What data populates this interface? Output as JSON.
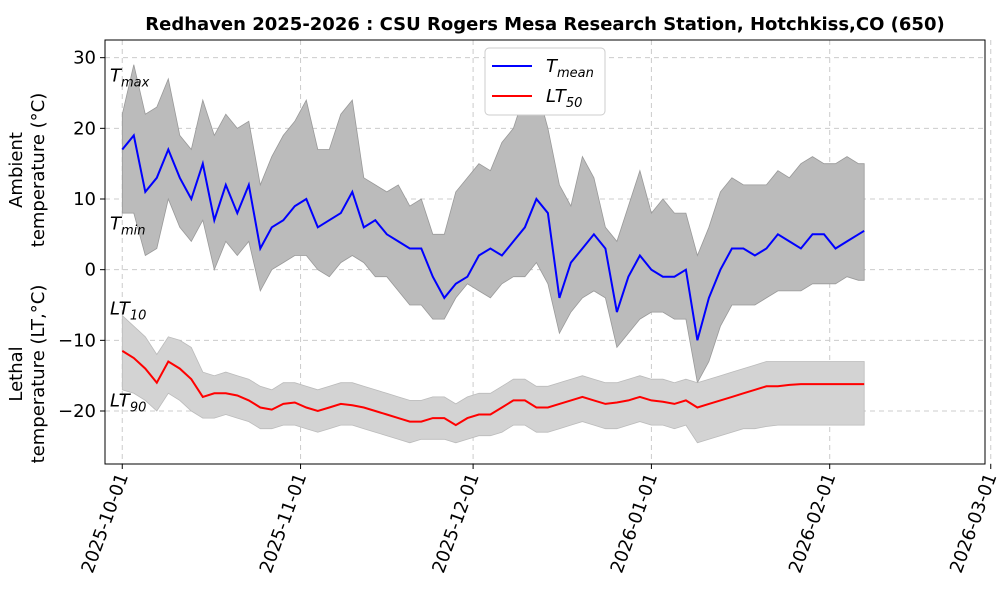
{
  "chart_data": {
    "type": "line",
    "title": "Redhaven 2025-2026 : CSU Rogers Mesa Research Station, Hotchkiss,CO (650)",
    "ylabel_upper": [
      "Ambient",
      "temperature (°C)"
    ],
    "ylabel_lower": [
      "Lethal",
      "temperature (LT,°C)"
    ],
    "ylim": [
      -27.5,
      32.5
    ],
    "yticks": [
      -20,
      -10,
      0,
      10,
      20,
      30
    ],
    "ytick_labels": [
      "−20",
      "−10",
      "0",
      "10",
      "20",
      "30"
    ],
    "xlim_days": [
      -3,
      150
    ],
    "xticks_days": [
      0,
      31,
      61,
      92,
      123,
      151
    ],
    "xtick_labels": [
      "2025-10-01",
      "2025-11-01",
      "2025-12-01",
      "2026-01-01",
      "2026-02-01",
      "2026-03-01"
    ],
    "grid": true,
    "legend_position": "top-center",
    "legend": [
      {
        "main": "T",
        "sub": "mean",
        "color": "#0000ff"
      },
      {
        "main": "LT",
        "sub": "50",
        "color": "#ff0000"
      }
    ],
    "annotations": [
      {
        "main": "T",
        "sub": "max",
        "y": 27.5
      },
      {
        "main": "T",
        "sub": "min",
        "y": 6.5
      },
      {
        "main": "LT",
        "sub": "10",
        "y": -5.5
      },
      {
        "main": "LT",
        "sub": "90",
        "y": -18.5
      }
    ],
    "colors": {
      "tmean": "#0000ff",
      "lt50": "#ff0000",
      "temp_band": "#bbbbbb",
      "lt_band": "#d3d3d3"
    },
    "series": [
      {
        "name": "T_mean",
        "days": [
          0,
          2,
          4,
          6,
          8,
          10,
          12,
          14,
          16,
          18,
          20,
          22,
          24,
          26,
          28,
          30,
          32,
          34,
          36,
          38,
          40,
          42,
          44,
          46,
          48,
          50,
          52,
          54,
          56,
          58,
          60,
          62,
          64,
          66,
          68,
          70,
          72,
          74,
          76,
          78,
          80,
          82,
          84,
          86,
          88,
          90,
          92,
          94,
          96,
          98,
          100,
          102,
          104,
          106,
          108,
          110,
          112,
          114,
          116,
          118,
          120,
          122,
          124,
          126,
          128,
          129
        ],
        "values": [
          17,
          19,
          11,
          13,
          17,
          13,
          10,
          15,
          7,
          12,
          8,
          12,
          3,
          6,
          7,
          9,
          10,
          6,
          7,
          8,
          11,
          6,
          7,
          5,
          4,
          3,
          3,
          -1,
          -4,
          -2,
          -1,
          2,
          3,
          2,
          4,
          6,
          10,
          8,
          -4,
          1,
          3,
          5,
          3,
          -6,
          -1,
          2,
          0,
          -1,
          -1,
          0,
          -10,
          -4,
          0,
          3,
          3,
          2,
          3,
          5,
          4,
          3,
          5,
          5,
          3,
          4,
          5,
          5.5
        ]
      },
      {
        "name": "T_max",
        "days": [
          0,
          2,
          4,
          6,
          8,
          10,
          12,
          14,
          16,
          18,
          20,
          22,
          24,
          26,
          28,
          30,
          32,
          34,
          36,
          38,
          40,
          42,
          44,
          46,
          48,
          50,
          52,
          54,
          56,
          58,
          60,
          62,
          64,
          66,
          68,
          70,
          72,
          74,
          76,
          78,
          80,
          82,
          84,
          86,
          88,
          90,
          92,
          94,
          96,
          98,
          100,
          102,
          104,
          106,
          108,
          110,
          112,
          114,
          116,
          118,
          120,
          122,
          124,
          126,
          128,
          129
        ],
        "values": [
          22,
          29,
          22,
          23,
          27,
          19,
          17,
          24,
          19,
          22,
          20,
          21,
          12,
          16,
          19,
          21,
          24,
          17,
          17,
          22,
          24,
          13,
          12,
          11,
          12,
          9,
          10,
          5,
          5,
          11,
          13,
          15,
          14,
          18,
          20,
          25,
          26,
          20,
          12,
          9,
          16,
          13,
          6,
          4,
          9,
          14,
          8,
          10,
          8,
          8,
          2,
          6,
          11,
          13,
          12,
          12,
          12,
          14,
          13,
          15,
          16,
          15,
          15,
          16,
          15,
          15
        ]
      },
      {
        "name": "T_min",
        "days": [
          0,
          2,
          4,
          6,
          8,
          10,
          12,
          14,
          16,
          18,
          20,
          22,
          24,
          26,
          28,
          30,
          32,
          34,
          36,
          38,
          40,
          42,
          44,
          46,
          48,
          50,
          52,
          54,
          56,
          58,
          60,
          62,
          64,
          66,
          68,
          70,
          72,
          74,
          76,
          78,
          80,
          82,
          84,
          86,
          88,
          90,
          92,
          94,
          96,
          98,
          100,
          102,
          104,
          106,
          108,
          110,
          112,
          114,
          116,
          118,
          120,
          122,
          124,
          126,
          128,
          129
        ],
        "values": [
          8,
          8,
          2,
          3,
          10,
          6,
          4,
          7,
          0,
          4,
          2,
          4,
          -3,
          0,
          1,
          2,
          2,
          0,
          -1,
          1,
          2,
          1,
          -1,
          -1,
          -3,
          -5,
          -5,
          -7,
          -7,
          -4,
          -2,
          -3,
          -4,
          -2,
          -1,
          -1,
          1,
          -2,
          -9,
          -6,
          -4,
          -3,
          -4,
          -11,
          -9,
          -7,
          -6,
          -6,
          -7,
          -7,
          -16,
          -13,
          -8,
          -5,
          -5,
          -5,
          -4,
          -3,
          -3,
          -3,
          -2,
          -2,
          -2,
          -1,
          -1.5,
          -1.5
        ]
      },
      {
        "name": "LT_50",
        "days": [
          0,
          2,
          4,
          6,
          8,
          10,
          12,
          14,
          16,
          18,
          20,
          22,
          24,
          26,
          28,
          30,
          32,
          34,
          36,
          38,
          40,
          42,
          44,
          46,
          48,
          50,
          52,
          54,
          56,
          58,
          60,
          62,
          64,
          66,
          68,
          70,
          72,
          74,
          76,
          78,
          80,
          82,
          84,
          86,
          88,
          90,
          92,
          94,
          96,
          98,
          100,
          102,
          104,
          106,
          108,
          110,
          112,
          114,
          116,
          118,
          120,
          122,
          124,
          126,
          128,
          129
        ],
        "values": [
          -11.5,
          -12.5,
          -14,
          -16,
          -13,
          -14,
          -15.5,
          -18,
          -17.5,
          -17.5,
          -17.8,
          -18.5,
          -19.5,
          -19.8,
          -19,
          -18.8,
          -19.5,
          -20,
          -19.5,
          -19,
          -19.2,
          -19.5,
          -20,
          -20.5,
          -21,
          -21.5,
          -21.5,
          -21,
          -21,
          -22,
          -21,
          -20.5,
          -20.5,
          -19.5,
          -18.5,
          -18.5,
          -19.5,
          -19.5,
          -19,
          -18.5,
          -18,
          -18.5,
          -19,
          -18.8,
          -18.5,
          -18,
          -18.5,
          -18.7,
          -19,
          -18.5,
          -19.5,
          -19,
          -18.5,
          -18,
          -17.5,
          -17,
          -16.5,
          -16.5,
          -16.3,
          -16.2,
          -16.2,
          -16.2,
          -16.2,
          -16.2,
          -16.2,
          -16.2
        ]
      },
      {
        "name": "LT_10",
        "days": [
          0,
          2,
          4,
          6,
          8,
          10,
          12,
          14,
          16,
          18,
          20,
          22,
          24,
          26,
          28,
          30,
          32,
          34,
          36,
          38,
          40,
          42,
          44,
          46,
          48,
          50,
          52,
          54,
          56,
          58,
          60,
          62,
          64,
          66,
          68,
          70,
          72,
          74,
          76,
          78,
          80,
          82,
          84,
          86,
          88,
          90,
          92,
          94,
          96,
          98,
          100,
          102,
          104,
          106,
          108,
          110,
          112,
          114,
          116,
          118,
          120,
          122,
          124,
          126,
          128,
          129
        ],
        "values": [
          -6.5,
          -8,
          -9.5,
          -12,
          -9.5,
          -10,
          -11,
          -14.5,
          -15,
          -14.5,
          -15,
          -15.5,
          -16.5,
          -17,
          -16,
          -16,
          -16.5,
          -17,
          -16.5,
          -16,
          -16,
          -16.5,
          -17,
          -17.5,
          -18,
          -18.5,
          -18.5,
          -18,
          -18,
          -19,
          -18,
          -17.5,
          -17.5,
          -16.5,
          -15.5,
          -15.5,
          -16.5,
          -16.5,
          -16,
          -15.5,
          -15,
          -15.5,
          -16,
          -16,
          -15.5,
          -15,
          -15.5,
          -15.5,
          -16,
          -15.5,
          -16,
          -15.5,
          -15,
          -14.5,
          -14,
          -13.5,
          -13,
          -13,
          -13,
          -13,
          -13,
          -13,
          -13,
          -13,
          -13,
          -13
        ]
      },
      {
        "name": "LT_90",
        "days": [
          0,
          2,
          4,
          6,
          8,
          10,
          12,
          14,
          16,
          18,
          20,
          22,
          24,
          26,
          28,
          30,
          32,
          34,
          36,
          38,
          40,
          42,
          44,
          46,
          48,
          50,
          52,
          54,
          56,
          58,
          60,
          62,
          64,
          66,
          68,
          70,
          72,
          74,
          76,
          78,
          80,
          82,
          84,
          86,
          88,
          90,
          92,
          94,
          96,
          98,
          100,
          102,
          104,
          106,
          108,
          110,
          112,
          114,
          116,
          118,
          120,
          122,
          124,
          126,
          128,
          129
        ],
        "values": [
          -17,
          -17.5,
          -18.5,
          -20,
          -17.5,
          -18.5,
          -20,
          -21,
          -21,
          -20.5,
          -21,
          -21.5,
          -22.5,
          -22.5,
          -22,
          -22,
          -22.5,
          -23,
          -22.5,
          -22,
          -22,
          -22.5,
          -23,
          -23.5,
          -24,
          -24.5,
          -24,
          -24,
          -24,
          -24.5,
          -24,
          -23.5,
          -23.5,
          -23,
          -22,
          -22,
          -23,
          -23,
          -22.5,
          -22,
          -21.5,
          -22,
          -22.5,
          -22.5,
          -22,
          -21.5,
          -22,
          -22,
          -22.5,
          -22,
          -24.5,
          -24,
          -23.5,
          -23,
          -22.5,
          -22.5,
          -22.2,
          -22,
          -22,
          -22,
          -22,
          -22,
          -22,
          -22,
          -22,
          -22
        ]
      }
    ]
  }
}
